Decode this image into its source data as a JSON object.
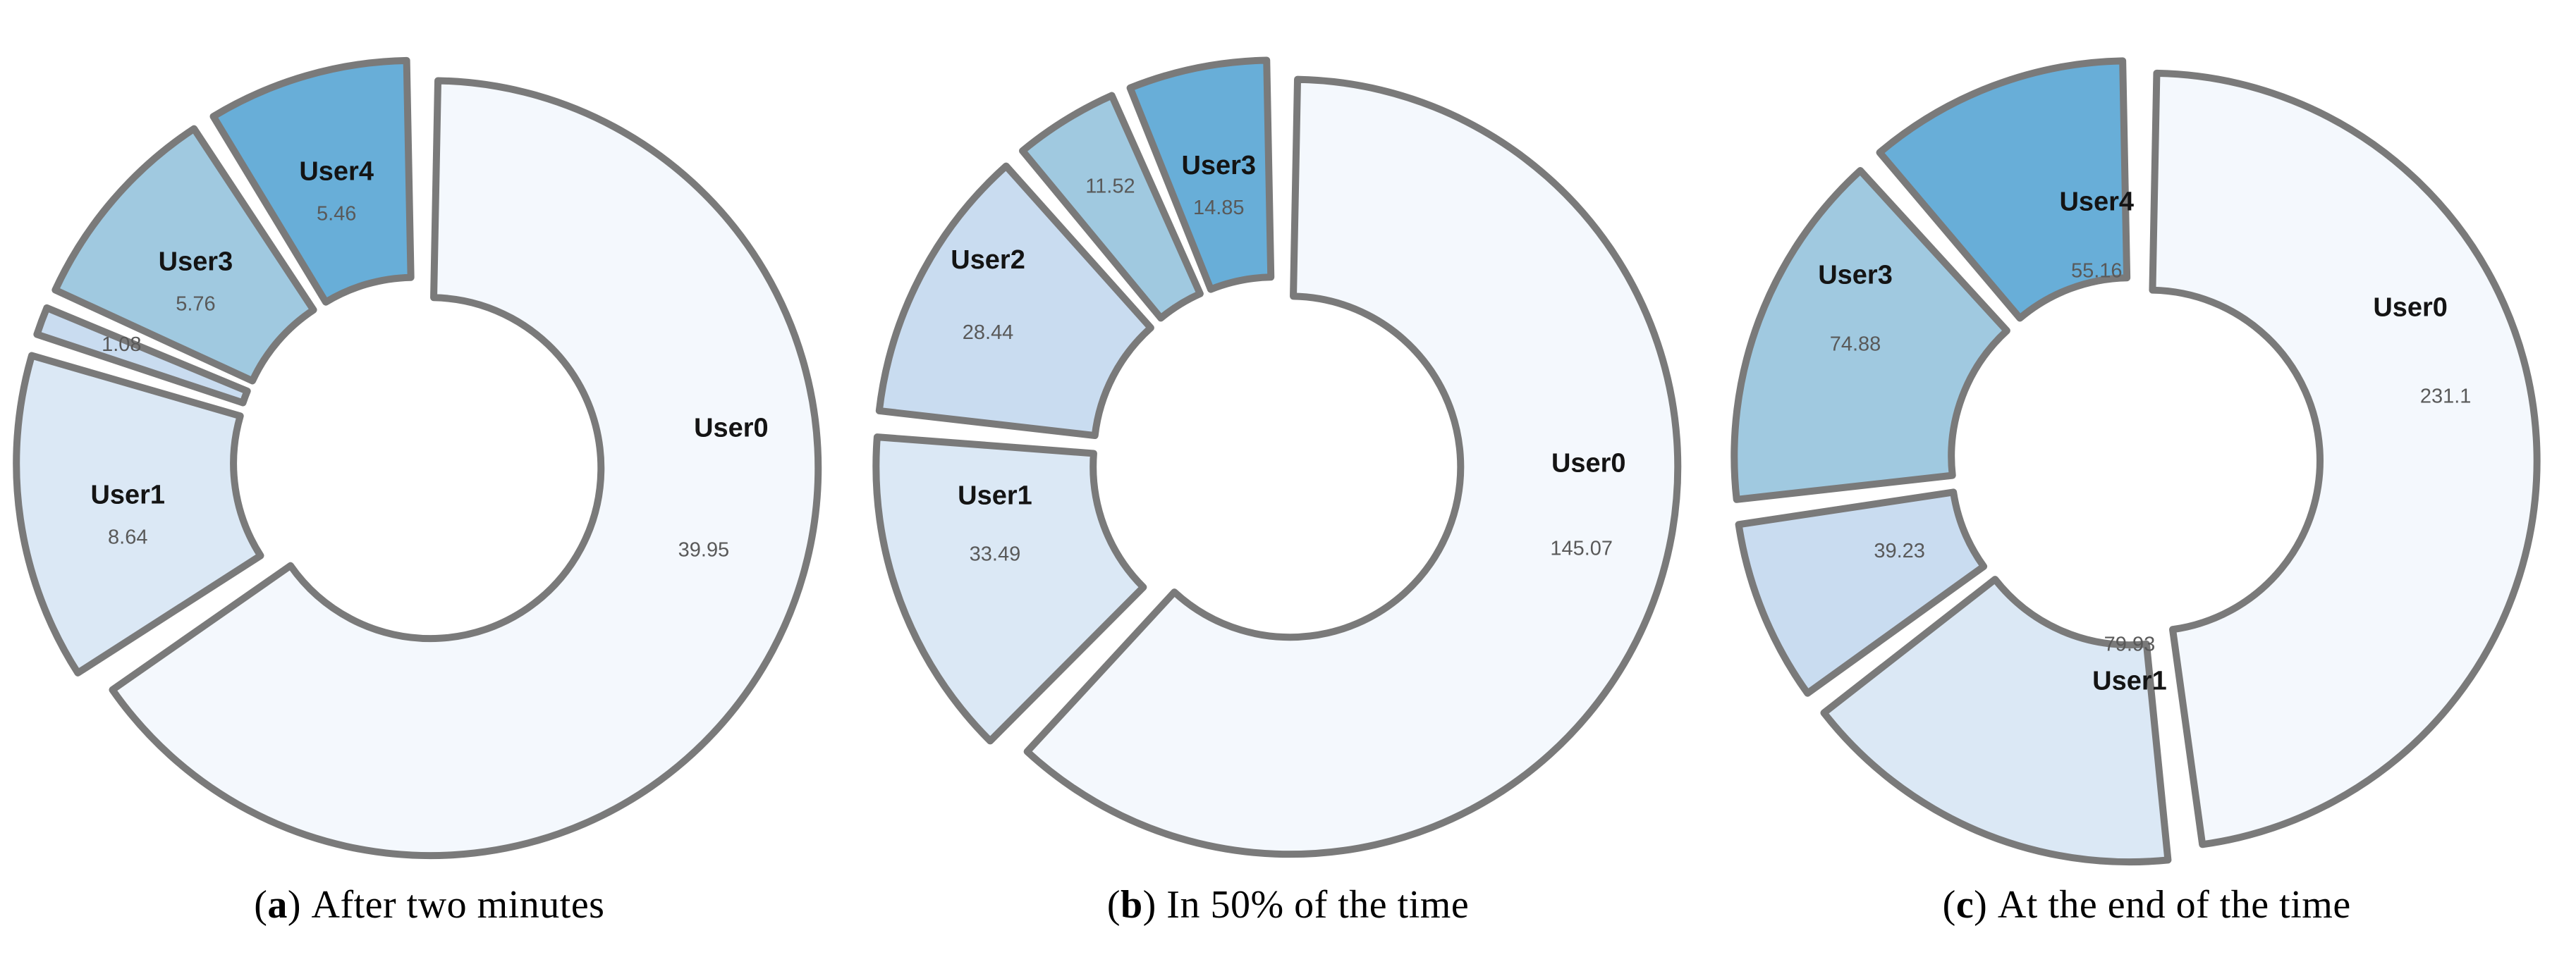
{
  "colors": {
    "background": "#ffffff",
    "slice_border": "#7a7a7a",
    "name_label": "#141414",
    "value_label": "#595959",
    "caption_text": "#000000",
    "palette": [
      "#f4f8fd",
      "#dbe8f5",
      "#c9dcf0",
      "#a0c9e0",
      "#68aed8"
    ]
  },
  "chart_data": [
    {
      "type": "pie",
      "variant": "exploded-donut",
      "caption_letter": "a",
      "caption_text": "After two minutes",
      "slices": [
        {
          "name": "User0",
          "value": 39.95,
          "show_name": true
        },
        {
          "name": "User1",
          "value": 8.64,
          "show_name": true
        },
        {
          "name": "",
          "value": 1.08,
          "show_name": false
        },
        {
          "name": "User3",
          "value": 5.76,
          "show_name": true
        },
        {
          "name": "User4",
          "value": 5.46,
          "show_name": true
        }
      ],
      "layout": {
        "start_angle_deg": 0,
        "clockwise": true,
        "hole_ratio": 0.44,
        "label_overrides": {
          "0": {
            "angle": 84,
            "radius": 0.78,
            "value_dx": -39,
            "value_dy": 170
          }
        }
      }
    },
    {
      "type": "pie",
      "variant": "exploded-donut",
      "caption_letter": "b",
      "caption_text": "In 50% of the time",
      "slices": [
        {
          "name": "User0",
          "value": 145.07,
          "show_name": true
        },
        {
          "name": "User1",
          "value": 33.49,
          "show_name": true
        },
        {
          "name": "User2",
          "value": 28.44,
          "show_name": true
        },
        {
          "name": "",
          "value": 11.52,
          "show_name": false
        },
        {
          "name": "User3",
          "value": 14.85,
          "show_name": true
        }
      ],
      "layout": {
        "start_angle_deg": 0,
        "clockwise": true,
        "hole_ratio": 0.44,
        "label_overrides": {
          "0": {
            "angle": 91,
            "radius": 0.77,
            "value_dx": -10,
            "value_dy": 118
          },
          "1": {
            "angle": 262,
            "radius": 0.7,
            "value_dy": 80
          },
          "2": {
            "angle": 304,
            "radius": 0.86,
            "value_dy": 100
          }
        }
      }
    },
    {
      "type": "pie",
      "variant": "exploded-donut",
      "caption_letter": "c",
      "caption_text": "At the end of the time",
      "slices": [
        {
          "name": "User0",
          "value": 231.1,
          "show_name": true
        },
        {
          "name": "User1",
          "value": 79.93,
          "show_name": true
        },
        {
          "name": "",
          "value": 39.23,
          "show_name": false
        },
        {
          "name": "User3",
          "value": 74.88,
          "show_name": true
        },
        {
          "name": "User4",
          "value": 55.16,
          "show_name": true
        }
      ],
      "layout": {
        "start_angle_deg": 0,
        "clockwise": true,
        "hole_ratio": 0.44,
        "label_overrides": {
          "0": {
            "angle": 61,
            "radius": 0.77,
            "value_dx": 50,
            "value_dy": 123
          },
          "1": {
            "angle": 180,
            "radius": 0.555,
            "value_dy": -55
          },
          "2": {
            "radius": 0.62
          },
          "3": {
            "angle": 303,
            "radius": 0.82,
            "value_dy": 95
          },
          "4": {
            "angle": 352,
            "radius": 0.62,
            "value_dy": 95
          }
        }
      }
    }
  ]
}
